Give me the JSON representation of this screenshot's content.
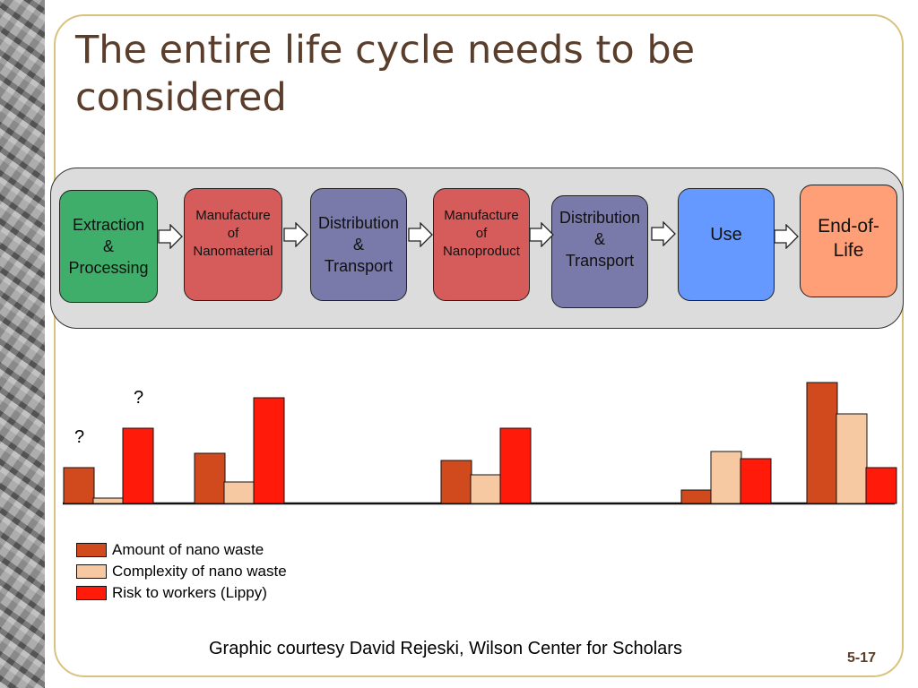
{
  "slide": {
    "title": "The entire life cycle needs to be considered",
    "credit": "Graphic courtesy David Rejeski, Wilson Center for Scholars",
    "slide_number": "5-17"
  },
  "process": {
    "stages": [
      {
        "label": "Extraction\n&\nProcessing",
        "color": "#3fae6a"
      },
      {
        "label": "Manufacture\nof\nNanomaterial",
        "color": "#d65c5c"
      },
      {
        "label": "Distribution\n&\nTransport",
        "color": "#7a7aaa"
      },
      {
        "label": "Manufacture\nof\nNanoproduct",
        "color": "#d65c5c"
      },
      {
        "label": "Distribution\n&\nTransport",
        "color": "#7a7aaa"
      },
      {
        "label": "Use",
        "color": "#6699ff"
      },
      {
        "label": "End-of-\nLife",
        "color": "#ff9f77"
      }
    ]
  },
  "chart_data": {
    "type": "bar",
    "categories": [
      "Extraction & Processing",
      "Manufacture of Nanomaterial",
      "Distribution & Transport",
      "Manufacture of Nanoproduct",
      "Distribution & Transport",
      "Use",
      "End-of-Life"
    ],
    "series": [
      {
        "name": "Amount of nano waste",
        "color": "#d04a1e",
        "values": [
          40,
          56,
          0,
          48,
          0,
          15,
          135
        ]
      },
      {
        "name": "Complexity of nano waste",
        "color": "#f7c9a3",
        "values": [
          6,
          24,
          0,
          32,
          0,
          58,
          100
        ]
      },
      {
        "name": "Risk to workers (Lippy)",
        "color": "#ff1a0a",
        "values": [
          84,
          118,
          0,
          84,
          0,
          50,
          40
        ]
      }
    ],
    "annotations": [
      "?",
      "?"
    ],
    "ylim": [
      0,
      140
    ]
  }
}
